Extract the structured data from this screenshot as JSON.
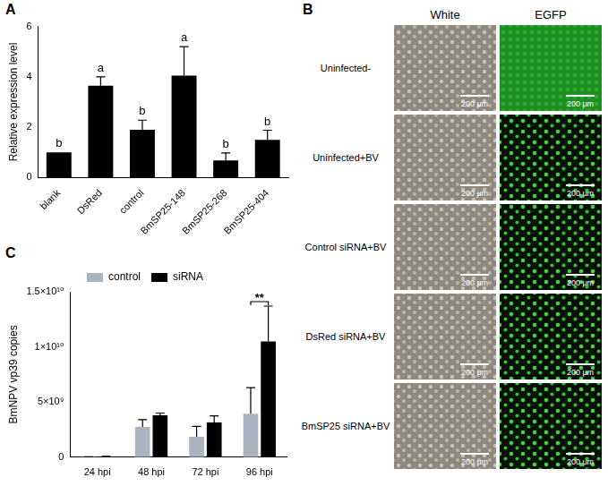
{
  "chart_data": [
    {
      "panel": "A",
      "type": "bar",
      "categories": [
        "blank",
        "DsRed",
        "control",
        "BmSP25-148",
        "BmSP25-268",
        "BmSP25-404"
      ],
      "values": [
        1.0,
        3.65,
        1.9,
        4.05,
        0.68,
        1.5
      ],
      "errors": [
        0,
        0.35,
        0.38,
        1.15,
        0.3,
        0.38
      ],
      "significance_letters": [
        "b",
        "a",
        "b",
        "a",
        "b",
        "b"
      ],
      "color": "#000000",
      "y_label": "Relative expression level",
      "ylim": [
        0,
        6
      ],
      "yticks": [
        0,
        2,
        4,
        6
      ],
      "grid": false
    },
    {
      "panel": "C",
      "type": "bar",
      "categories": [
        "24 hpi",
        "48 hpi",
        "72 hpi",
        "96 hpi"
      ],
      "series": [
        {
          "name": "control",
          "color": "#aab4c0",
          "values": [
            20000000,
            2750000000,
            1850000000,
            3950000000
          ],
          "errors": [
            10000000,
            650000000,
            950000000,
            2350000000
          ]
        },
        {
          "name": "siRNA",
          "color": "#000000",
          "values": [
            50000000,
            3800000000,
            3150000000,
            10500000000
          ],
          "errors": [
            20000000,
            200000000,
            600000000,
            3200000000
          ]
        }
      ],
      "significance": [
        {
          "category": "96 hpi",
          "text": "**"
        }
      ],
      "y_label": "BmNPV vp39 copies",
      "ylim": [
        0,
        15000000000
      ],
      "yticks": [
        0,
        {
          "value": 5000000000,
          "label": "5×10⁹"
        },
        {
          "value": 10000000000,
          "label": "1×10¹⁰"
        },
        {
          "value": 15000000000,
          "label": "1.5×10¹⁰"
        }
      ],
      "legend": "top",
      "grid": false
    }
  ],
  "image_grid": {
    "panel": "B",
    "columns": [
      "White",
      "EGFP"
    ],
    "rows": [
      "Uninfected-",
      "Uninfected+BV",
      "Control siRNA+BV",
      "DsRed siRNA+BV",
      "BmSP25 siRNA+BV"
    ],
    "scale_bar": "200 μm"
  }
}
